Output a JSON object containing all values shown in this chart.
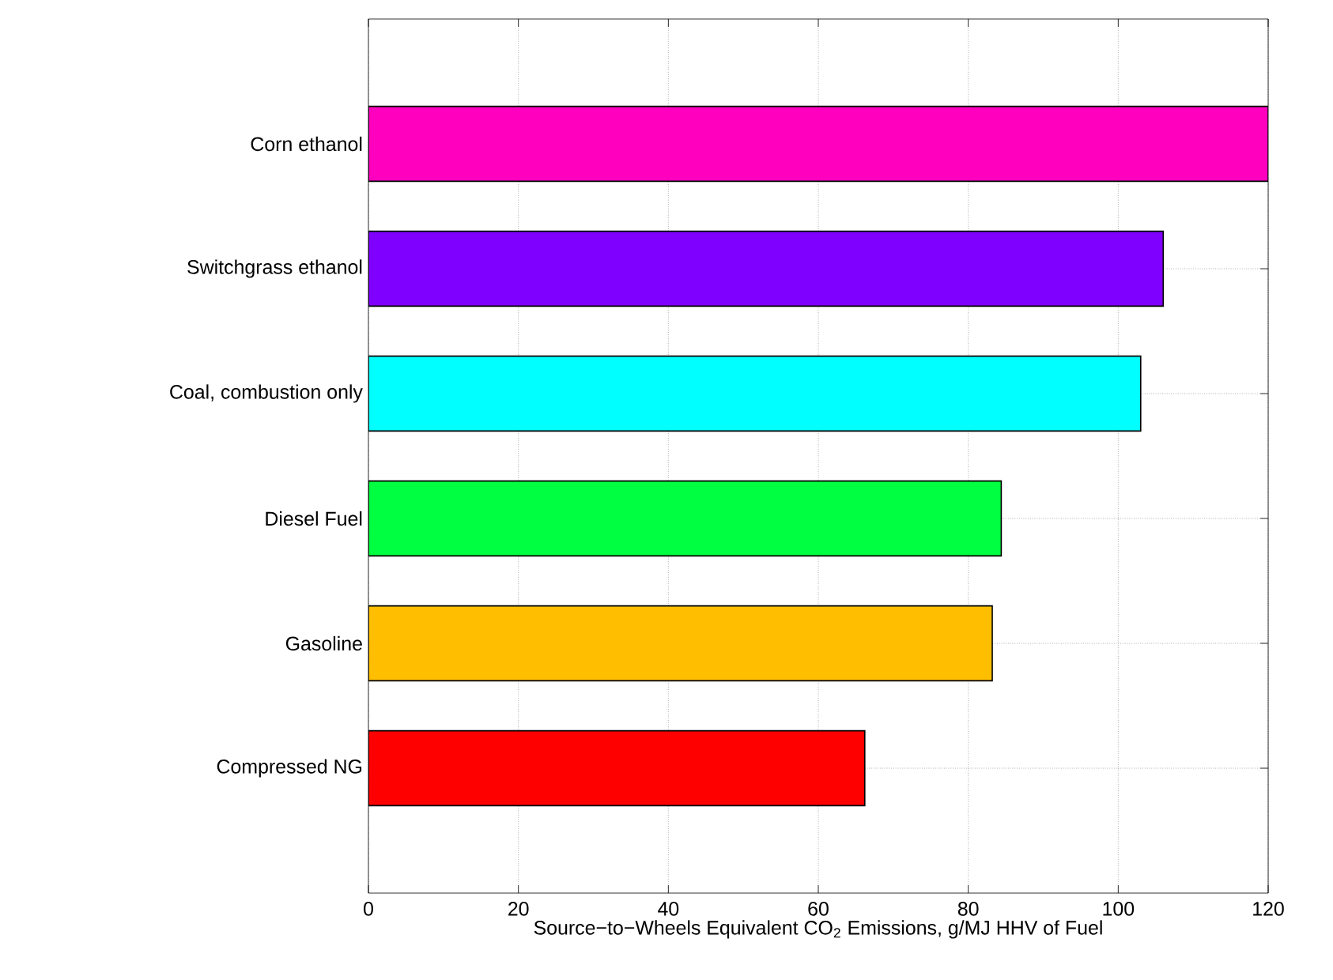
{
  "chart_data": {
    "type": "bar",
    "orientation": "horizontal",
    "xlabel": "Source−to−Wheels Equivalent CO$_{2}$ Emissions, g/MJ HHV of Fuel",
    "categories": [
      "Corn ethanol",
      "Switchgrass ethanol",
      "Coal, combustion only",
      "Diesel Fuel",
      "Gasoline",
      "Compressed NG"
    ],
    "values": [
      120,
      106,
      103,
      84.4,
      83.2,
      66.2
    ],
    "colors": [
      "#ff00bf",
      "#8000ff",
      "#00ffff",
      "#00ff40",
      "#ffbf00",
      "#ff0000"
    ],
    "xlim": [
      0,
      120
    ],
    "xticks": [
      0,
      20,
      40,
      60,
      80,
      100,
      120
    ],
    "grid": true
  }
}
